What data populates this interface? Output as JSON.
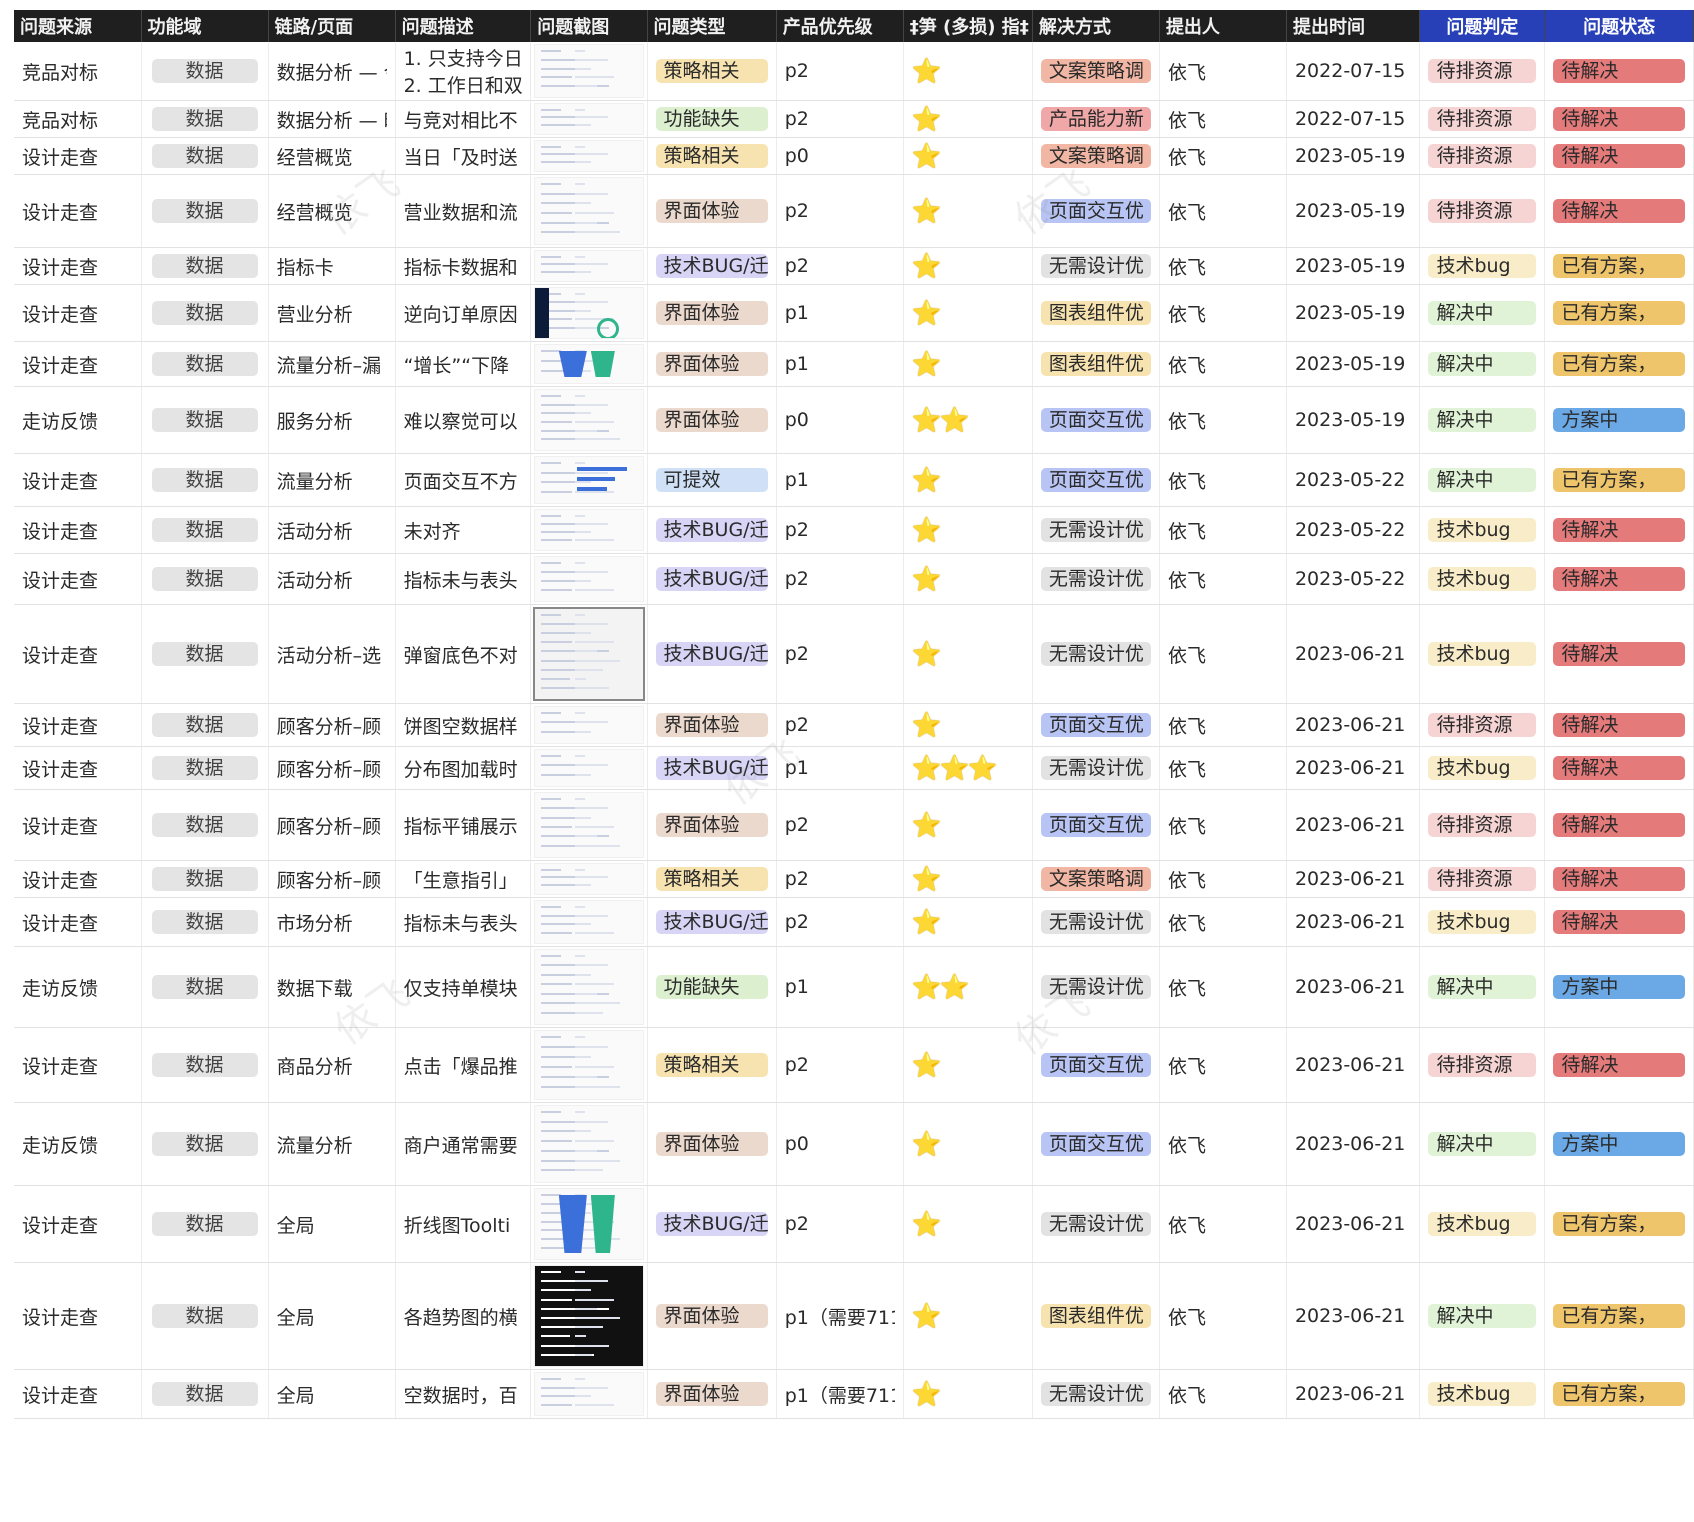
{
  "headers": [
    "问题来源",
    "功能域",
    "链路/页面",
    "问题描述",
    "问题截图",
    "问题类型",
    "产品优先级",
    "‡笋 (多损) 指‡",
    "解决方式",
    "提出人",
    "提出时间",
    "问题判定",
    "问题状态"
  ],
  "colors": {
    "type": {
      "策略相关": "#f7e3b0",
      "功能缺失": "#dcefcf",
      "界面体验": "#ecd9cd",
      "技术BUG/迁": "#d8d4f5",
      "可提效": "#cfe0f7"
    },
    "solution": {
      "文案策略调": "#f2b7a4",
      "产品能力新": "#f0a7a7",
      "页面交互优": "#b8c4f3",
      "无需设计优": "#e2e2e2",
      "图表组件优": "#f7e3b0"
    },
    "judge": {
      "待排资源": "#f6d4d4",
      "技术bug": "#f8edc8",
      "解决中": "#e1f3d6"
    },
    "status": {
      "待解决": "#e57a7a",
      "已有方案，": "#efc56b",
      "方案中": "#6aa9e6"
    }
  },
  "rows": [
    {
      "src": "竞品对标",
      "domain": "数据",
      "page": "数据分析 — 今",
      "desc": "1. 只支持今日",
      "desc2": "2. 工作日和双",
      "type": "策略相关",
      "prio": "p2",
      "stars": "⭐",
      "sol": "文案策略调",
      "who": "依飞",
      "time": "2022-07-15",
      "judge": "待排资源",
      "status": "待解决"
    },
    {
      "src": "竞品对标",
      "domain": "数据",
      "page": "数据分析 — 时",
      "desc": "与竞对相比不",
      "type": "功能缺失",
      "prio": "p2",
      "stars": "⭐",
      "sol": "产品能力新",
      "who": "依飞",
      "time": "2022-07-15",
      "judge": "待排资源",
      "status": "待解决"
    },
    {
      "src": "设计走查",
      "domain": "数据",
      "page": "经营概览",
      "desc": "当日「及时送",
      "type": "策略相关",
      "prio": "p0",
      "stars": "⭐",
      "sol": "文案策略调",
      "who": "依飞",
      "time": "2023-05-19",
      "judge": "待排资源",
      "status": "待解决"
    },
    {
      "src": "设计走查",
      "domain": "数据",
      "page": "经营概览",
      "desc": "营业数据和流",
      "type": "界面体验",
      "prio": "p2",
      "stars": "⭐",
      "sol": "页面交互优",
      "who": "依飞",
      "time": "2023-05-19",
      "judge": "待排资源",
      "status": "待解决"
    },
    {
      "src": "设计走查",
      "domain": "数据",
      "page": "指标卡",
      "desc": "指标卡数据和",
      "type": "技术BUG/迁",
      "prio": "p2",
      "stars": "⭐",
      "sol": "无需设计优",
      "who": "依飞",
      "time": "2023-05-19",
      "judge": "技术bug",
      "status": "已有方案，"
    },
    {
      "src": "设计走查",
      "domain": "数据",
      "page": "营业分析",
      "desc": "逆向订单原因",
      "type": "界面体验",
      "prio": "p1",
      "stars": "⭐",
      "sol": "图表组件优",
      "who": "依飞",
      "time": "2023-05-19",
      "judge": "解决中",
      "status": "已有方案，"
    },
    {
      "src": "设计走查",
      "domain": "数据",
      "page": "流量分析–漏",
      "desc": "“增长”“下降",
      "type": "界面体验",
      "prio": "p1",
      "stars": "⭐",
      "sol": "图表组件优",
      "who": "依飞",
      "time": "2023-05-19",
      "judge": "解决中",
      "status": "已有方案，"
    },
    {
      "src": "走访反馈",
      "domain": "数据",
      "page": "服务分析",
      "desc": "难以察觉可以",
      "type": "界面体验",
      "prio": "p0",
      "stars": "⭐⭐",
      "sol": "页面交互优",
      "who": "依飞",
      "time": "2023-05-19",
      "judge": "解决中",
      "status": "方案中"
    },
    {
      "src": "设计走查",
      "domain": "数据",
      "page": "流量分析",
      "desc": "页面交互不方",
      "type": "可提效",
      "prio": "p1",
      "stars": "⭐",
      "sol": "页面交互优",
      "who": "依飞",
      "time": "2023-05-22",
      "judge": "解决中",
      "status": "已有方案，"
    },
    {
      "src": "设计走查",
      "domain": "数据",
      "page": "活动分析",
      "desc": "未对齐",
      "type": "技术BUG/迁",
      "prio": "p2",
      "stars": "⭐",
      "sol": "无需设计优",
      "who": "依飞",
      "time": "2023-05-22",
      "judge": "技术bug",
      "status": "待解决"
    },
    {
      "src": "设计走查",
      "domain": "数据",
      "page": "活动分析",
      "desc": "指标未与表头",
      "type": "技术BUG/迁",
      "prio": "p2",
      "stars": "⭐",
      "sol": "无需设计优",
      "who": "依飞",
      "time": "2023-05-22",
      "judge": "技术bug",
      "status": "待解决"
    },
    {
      "src": "设计走查",
      "domain": "数据",
      "page": "活动分析–选",
      "desc": "弹窗底色不对",
      "type": "技术BUG/迁",
      "prio": "p2",
      "stars": "⭐",
      "sol": "无需设计优",
      "who": "依飞",
      "time": "2023-06-21",
      "judge": "技术bug",
      "status": "待解决"
    },
    {
      "src": "设计走查",
      "domain": "数据",
      "page": "顾客分析–顾",
      "desc": "饼图空数据样",
      "type": "界面体验",
      "prio": "p2",
      "stars": "⭐",
      "sol": "页面交互优",
      "who": "依飞",
      "time": "2023-06-21",
      "judge": "待排资源",
      "status": "待解决"
    },
    {
      "src": "设计走查",
      "domain": "数据",
      "page": "顾客分析–顾",
      "desc": "分布图加载时",
      "type": "技术BUG/迁",
      "prio": "p1",
      "stars": "⭐⭐⭐",
      "sol": "无需设计优",
      "who": "依飞",
      "time": "2023-06-21",
      "judge": "技术bug",
      "status": "待解决"
    },
    {
      "src": "设计走查",
      "domain": "数据",
      "page": "顾客分析–顾",
      "desc": "指标平铺展示",
      "type": "界面体验",
      "prio": "p2",
      "stars": "⭐",
      "sol": "页面交互优",
      "who": "依飞",
      "time": "2023-06-21",
      "judge": "待排资源",
      "status": "待解决"
    },
    {
      "src": "设计走查",
      "domain": "数据",
      "page": "顾客分析–顾",
      "desc": "「生意指引」",
      "type": "策略相关",
      "prio": "p2",
      "stars": "⭐",
      "sol": "文案策略调",
      "who": "依飞",
      "time": "2023-06-21",
      "judge": "待排资源",
      "status": "待解决"
    },
    {
      "src": "设计走查",
      "domain": "数据",
      "page": "市场分析",
      "desc": "指标未与表头",
      "type": "技术BUG/迁",
      "prio": "p2",
      "stars": "⭐",
      "sol": "无需设计优",
      "who": "依飞",
      "time": "2023-06-21",
      "judge": "技术bug",
      "status": "待解决"
    },
    {
      "src": "走访反馈",
      "domain": "数据",
      "page": "数据下载",
      "desc": "仅支持单模块",
      "type": "功能缺失",
      "prio": "p1",
      "stars": "⭐⭐",
      "sol": "无需设计优",
      "who": "依飞",
      "time": "2023-06-21",
      "judge": "解决中",
      "status": "方案中"
    },
    {
      "src": "设计走查",
      "domain": "数据",
      "page": "商品分析",
      "desc": "点击「爆品推",
      "type": "策略相关",
      "prio": "p2",
      "stars": "⭐",
      "sol": "页面交互优",
      "who": "依飞",
      "time": "2023-06-21",
      "judge": "待排资源",
      "status": "待解决"
    },
    {
      "src": "走访反馈",
      "domain": "数据",
      "page": "流量分析",
      "desc": "商户通常需要",
      "type": "界面体验",
      "prio": "p0",
      "stars": "⭐",
      "sol": "页面交互优",
      "who": "依飞",
      "time": "2023-06-21",
      "judge": "解决中",
      "status": "方案中"
    },
    {
      "src": "设计走查",
      "domain": "数据",
      "page": "全局",
      "desc": "折线图Toolti",
      "type": "技术BUG/迁",
      "prio": "p2",
      "stars": "⭐",
      "sol": "无需设计优",
      "who": "依飞",
      "time": "2023-06-21",
      "judge": "技术bug",
      "status": "已有方案，"
    },
    {
      "src": "设计走查",
      "domain": "数据",
      "page": "全局",
      "desc": "各趋势图的横",
      "type": "界面体验",
      "prio": "p1（需要711",
      "stars": "⭐",
      "sol": "图表组件优",
      "who": "依飞",
      "time": "2023-06-21",
      "judge": "解决中",
      "status": "已有方案，"
    },
    {
      "src": "设计走查",
      "domain": "数据",
      "page": "全局",
      "desc": "空数据时，百",
      "type": "界面体验",
      "prio": "p1（需要711",
      "stars": "⭐",
      "sol": "无需设计优",
      "who": "依飞",
      "time": "2023-06-21",
      "judge": "技术bug",
      "status": "已有方案，"
    }
  ],
  "watermark": "依飞"
}
